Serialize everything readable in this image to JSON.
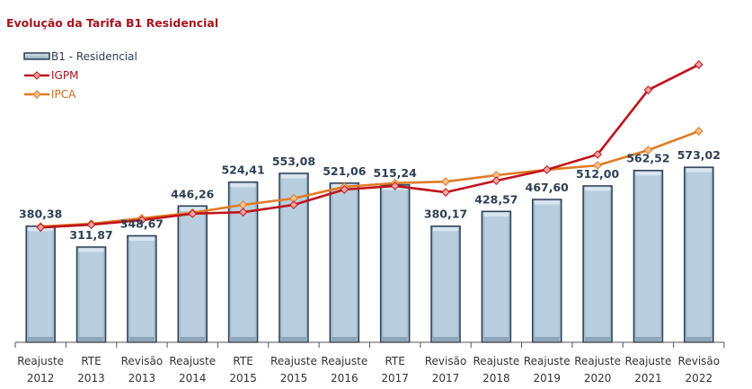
{
  "chart_data": {
    "type": "bar",
    "title": "Evolução da Tarifa B1 Residencial",
    "xlabel": "",
    "ylabel": "",
    "ylim": [
      0,
      1000
    ],
    "grid": false,
    "legend_position": "top-left",
    "categories": [
      [
        "Reajuste",
        "2012"
      ],
      [
        "RTE",
        "2013"
      ],
      [
        "Revisão",
        "2013"
      ],
      [
        "Reajuste",
        "2014"
      ],
      [
        "RTE",
        "2015"
      ],
      [
        "Reajuste",
        "2015"
      ],
      [
        "Reajuste",
        "2016"
      ],
      [
        "RTE",
        "2017"
      ],
      [
        "Revisão",
        "2017"
      ],
      [
        "Reajuste",
        "2018"
      ],
      [
        "Reajuste",
        "2019"
      ],
      [
        "Reajuste",
        "2020"
      ],
      [
        "Reajuste",
        "2021"
      ],
      [
        "Revisão",
        "2022"
      ]
    ],
    "series": [
      {
        "name": "B1 - Residencial",
        "kind": "bar",
        "color": "#b8cfdf",
        "border": "#2e3f55",
        "values": [
          380.38,
          311.87,
          348.67,
          446.26,
          524.41,
          553.08,
          521.06,
          515.24,
          380.17,
          428.57,
          467.6,
          512.0,
          562.52,
          573.02
        ],
        "labels": [
          "380,38",
          "311,87",
          "348,67",
          "446,26",
          "524,41",
          "553,08",
          "521,06",
          "515,24",
          "380,17",
          "428,57",
          "467,60",
          "512,00",
          "562,52",
          "573,02"
        ]
      },
      {
        "name": "IGPM",
        "kind": "line",
        "color": "#c0131c",
        "marker_fill": "#f6a3a0",
        "values": [
          376,
          385,
          400,
          421,
          426,
          450,
          500,
          512,
          491,
          529,
          565,
          615,
          826,
          909
        ]
      },
      {
        "name": "IPCA",
        "kind": "line",
        "color": "#e07b24",
        "marker_fill": "#f9c08e",
        "values": [
          379,
          388,
          406,
          424,
          450,
          471,
          509,
          521,
          526,
          547,
          565,
          579,
          629,
          691
        ]
      }
    ]
  }
}
